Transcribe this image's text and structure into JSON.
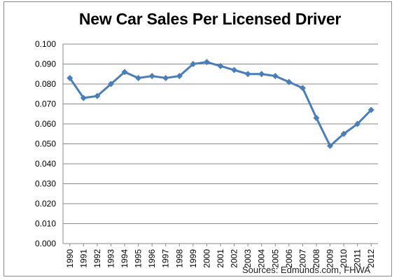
{
  "chart_data": {
    "type": "line",
    "title": "New Car Sales Per Licensed Driver",
    "source": "Sources: Edmunds.com, FHWA",
    "xlabel": "",
    "ylabel": "",
    "ylim": [
      0,
      0.1
    ],
    "yticks": [
      "0.000",
      "0.010",
      "0.020",
      "0.030",
      "0.040",
      "0.050",
      "0.060",
      "0.070",
      "0.080",
      "0.090",
      "0.100"
    ],
    "grid": true,
    "legend": "none",
    "line_color": "#4a7ebb",
    "categories": [
      "1990",
      "1991",
      "1992",
      "1993",
      "1994",
      "1995",
      "1996",
      "1997",
      "1998",
      "1999",
      "2000",
      "2001",
      "2002",
      "2003",
      "2004",
      "2005",
      "2006",
      "2007",
      "2008",
      "2009",
      "2010",
      "2011",
      "2012"
    ],
    "series": [
      {
        "values": [
          0.083,
          0.073,
          0.074,
          0.08,
          0.086,
          0.083,
          0.084,
          0.083,
          0.084,
          0.09,
          0.091,
          0.089,
          0.087,
          0.085,
          0.085,
          0.084,
          0.081,
          0.078,
          0.063,
          0.049,
          0.055,
          0.06,
          0.067
        ]
      }
    ]
  }
}
